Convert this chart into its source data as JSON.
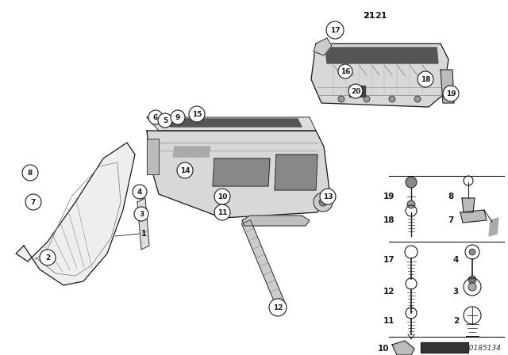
{
  "bg_color": "#ffffff",
  "part_number": "00185134",
  "dark": "#1a1a1a",
  "gray": "#888888",
  "light_gray": "#cccccc",
  "mid_gray": "#999999"
}
